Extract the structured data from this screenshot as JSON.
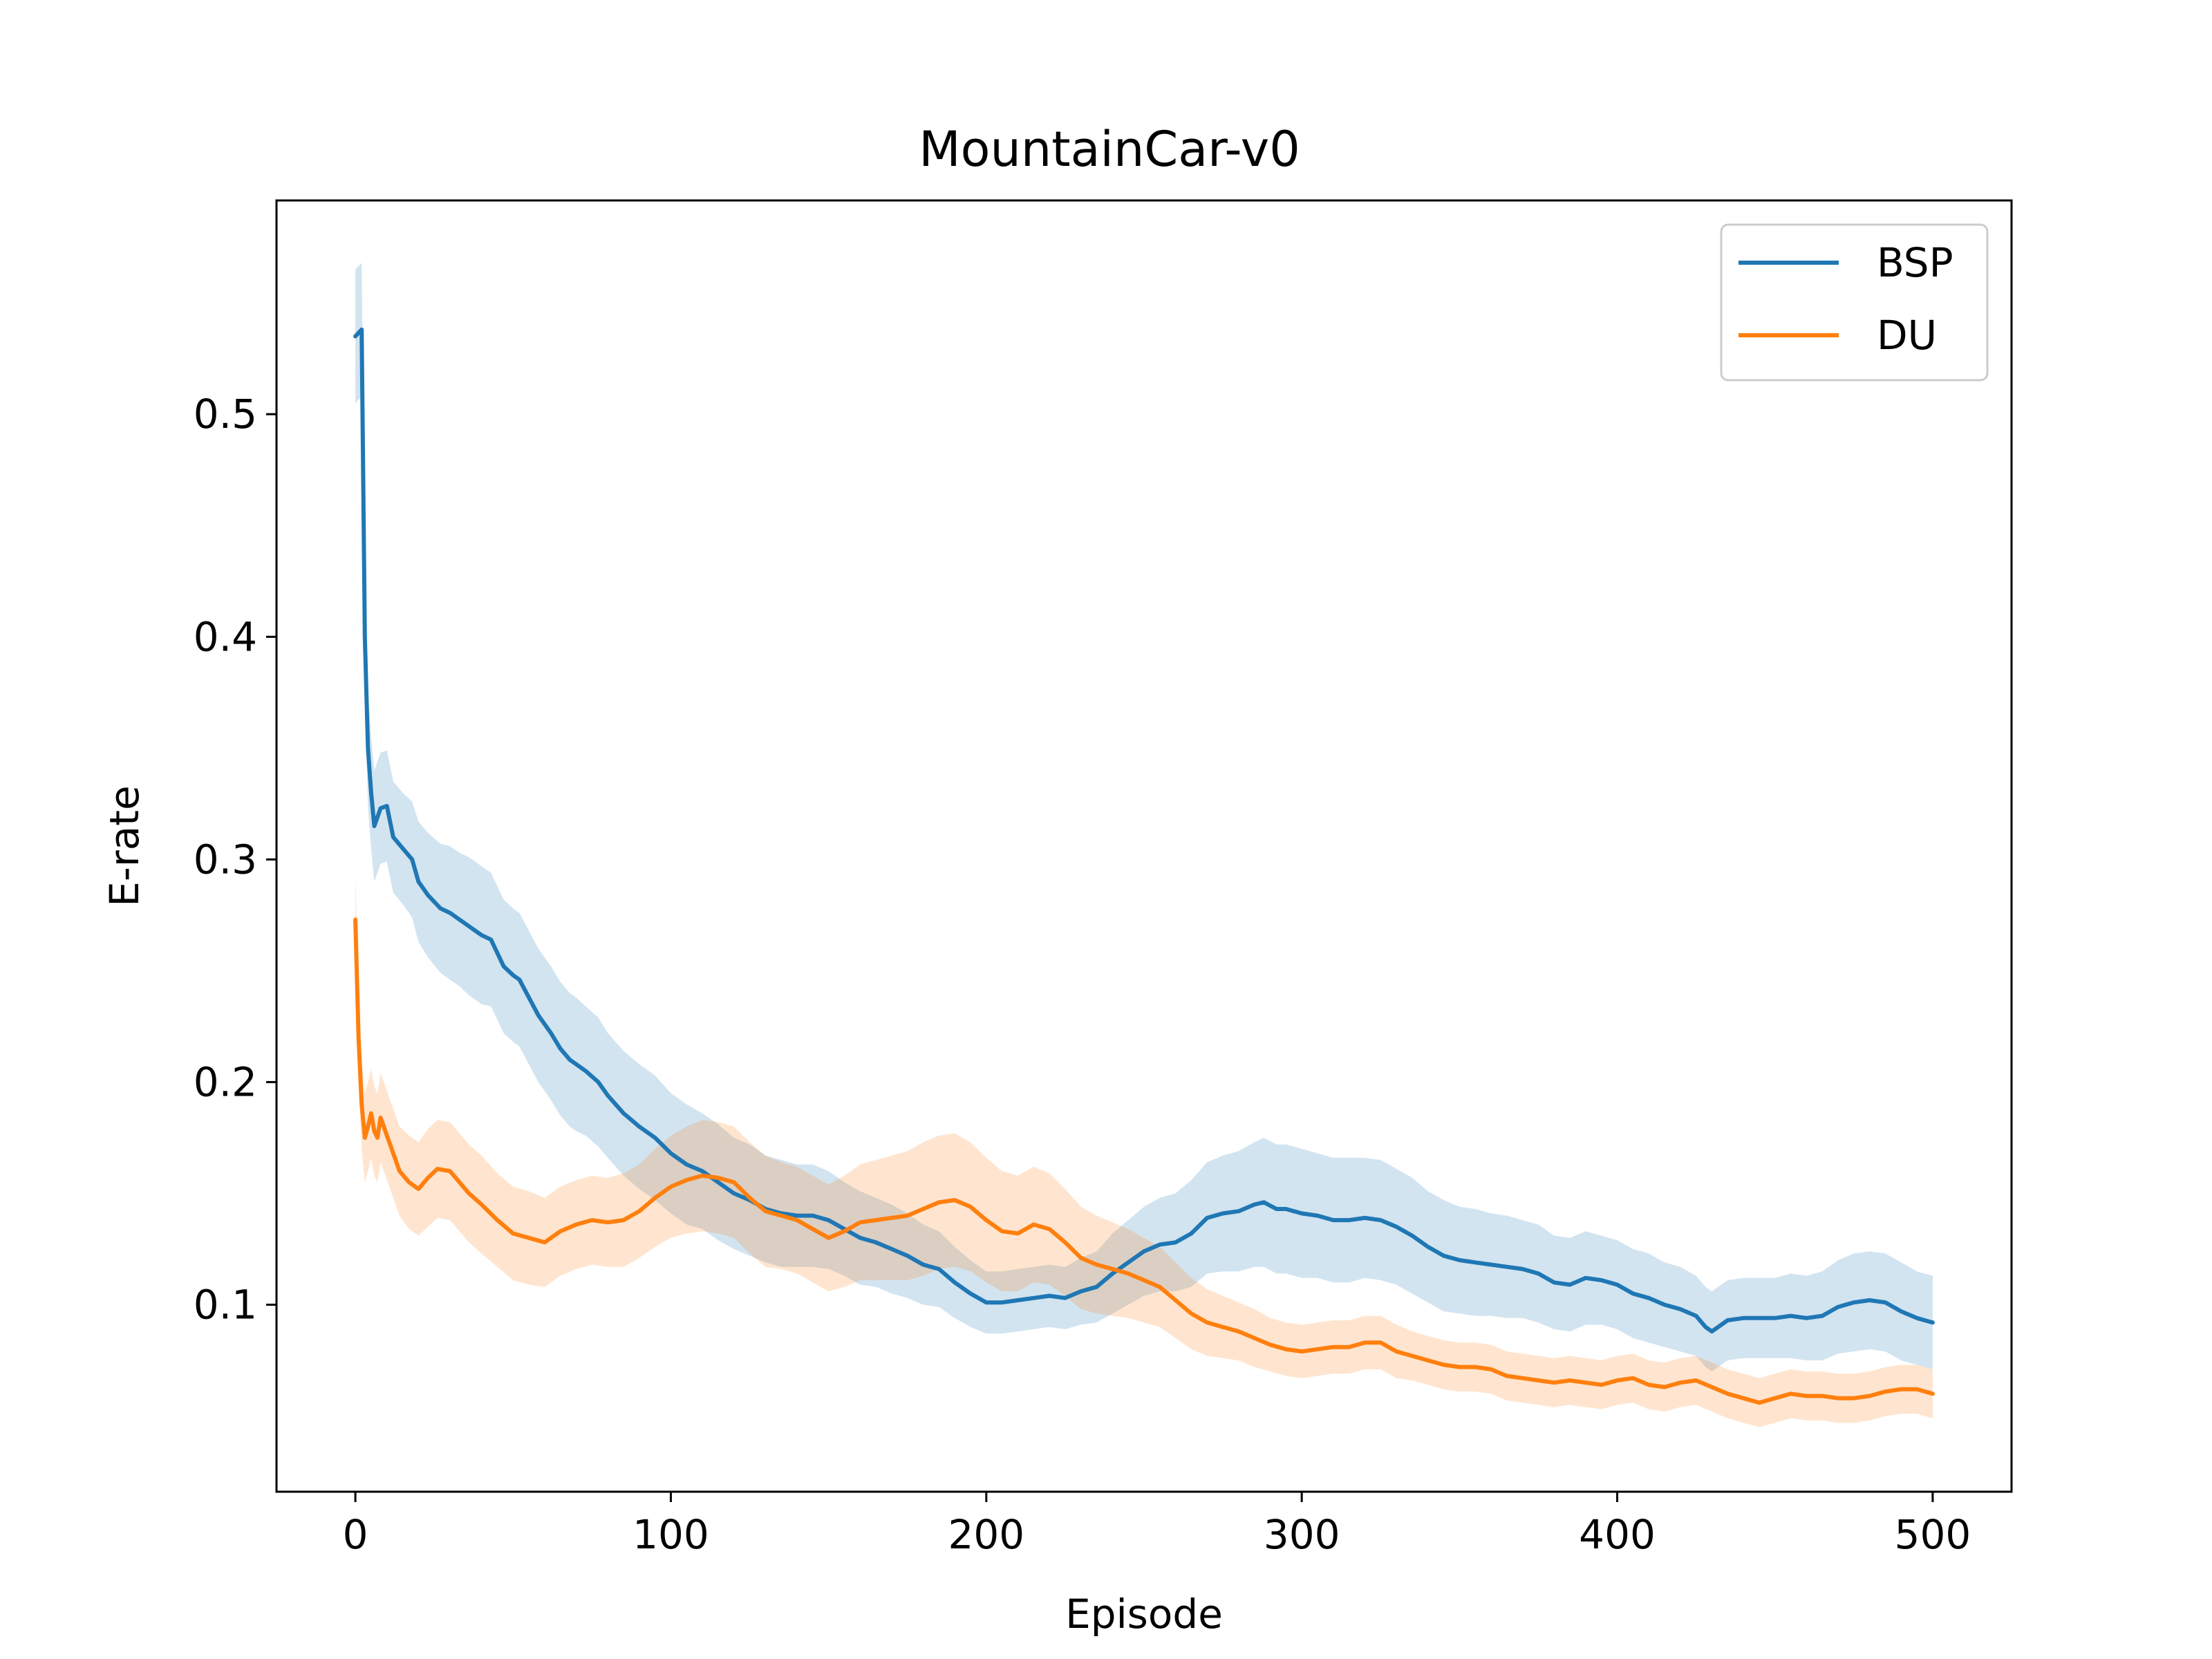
{
  "chart_data": {
    "type": "line",
    "title": "MountainCar-v0",
    "xlabel": "Episode",
    "ylabel": "E-rate",
    "xlim": [
      -25,
      525
    ],
    "ylim": [
      0.016,
      0.596
    ],
    "xticks": [
      {
        "value": 0,
        "label": "0"
      },
      {
        "value": 100,
        "label": "100"
      },
      {
        "value": 200,
        "label": "200"
      },
      {
        "value": 300,
        "label": "300"
      },
      {
        "value": 400,
        "label": "400"
      },
      {
        "value": 500,
        "label": "500"
      }
    ],
    "yticks": [
      {
        "value": 0.1,
        "label": "0.1"
      },
      {
        "value": 0.2,
        "label": "0.2"
      },
      {
        "value": 0.3,
        "label": "0.3"
      },
      {
        "value": 0.4,
        "label": "0.4"
      },
      {
        "value": 0.5,
        "label": "0.5"
      }
    ],
    "grid": false,
    "legend_position": "top-right",
    "shaded_band": "mean ± deviation",
    "series": [
      {
        "name": "BSP",
        "color": "#1f77b4",
        "x": [
          0,
          2,
          3,
          4,
          5,
          6,
          8,
          10,
          12,
          15,
          18,
          20,
          23,
          27,
          30,
          33,
          36,
          40,
          43,
          47,
          50,
          52,
          55,
          58,
          62,
          65,
          68,
          70,
          73,
          77,
          80,
          85,
          90,
          95,
          100,
          105,
          110,
          115,
          120,
          125,
          130,
          135,
          140,
          145,
          150,
          155,
          160,
          165,
          170,
          175,
          180,
          185,
          190,
          195,
          200,
          205,
          210,
          215,
          220,
          225,
          230,
          235,
          240,
          245,
          250,
          255,
          260,
          265,
          270,
          275,
          280,
          285,
          288,
          292,
          295,
          300,
          305,
          310,
          315,
          320,
          325,
          330,
          335,
          340,
          345,
          350,
          355,
          360,
          365,
          370,
          375,
          380,
          385,
          390,
          395,
          400,
          405,
          410,
          415,
          420,
          425,
          428,
          430,
          432,
          435,
          440,
          445,
          450,
          455,
          460,
          465,
          470,
          475,
          480,
          485,
          490,
          495,
          500
        ],
        "values": [
          0.535,
          0.538,
          0.4,
          0.35,
          0.33,
          0.315,
          0.323,
          0.324,
          0.31,
          0.305,
          0.3,
          0.29,
          0.284,
          0.278,
          0.276,
          0.273,
          0.27,
          0.266,
          0.264,
          0.252,
          0.248,
          0.246,
          0.238,
          0.23,
          0.222,
          0.215,
          0.21,
          0.208,
          0.205,
          0.2,
          0.194,
          0.186,
          0.18,
          0.175,
          0.168,
          0.163,
          0.16,
          0.155,
          0.15,
          0.147,
          0.143,
          0.141,
          0.14,
          0.14,
          0.138,
          0.134,
          0.13,
          0.128,
          0.125,
          0.122,
          0.118,
          0.116,
          0.11,
          0.105,
          0.101,
          0.101,
          0.102,
          0.103,
          0.104,
          0.103,
          0.106,
          0.108,
          0.114,
          0.119,
          0.124,
          0.127,
          0.128,
          0.132,
          0.139,
          0.141,
          0.142,
          0.145,
          0.146,
          0.143,
          0.143,
          0.141,
          0.14,
          0.138,
          0.138,
          0.139,
          0.138,
          0.135,
          0.131,
          0.126,
          0.122,
          0.12,
          0.119,
          0.118,
          0.117,
          0.116,
          0.114,
          0.11,
          0.109,
          0.112,
          0.111,
          0.109,
          0.105,
          0.103,
          0.1,
          0.098,
          0.095,
          0.09,
          0.088,
          0.09,
          0.093,
          0.094,
          0.094,
          0.094,
          0.095,
          0.094,
          0.095,
          0.099,
          0.101,
          0.102,
          0.101,
          0.097,
          0.094,
          0.092
        ],
        "spread": [
          0.03,
          0.03,
          0.028,
          0.026,
          0.025,
          0.025,
          0.025,
          0.025,
          0.025,
          0.025,
          0.026,
          0.027,
          0.028,
          0.029,
          0.03,
          0.03,
          0.031,
          0.031,
          0.03,
          0.03,
          0.03,
          0.03,
          0.03,
          0.03,
          0.03,
          0.03,
          0.03,
          0.03,
          0.029,
          0.029,
          0.028,
          0.028,
          0.028,
          0.028,
          0.027,
          0.027,
          0.026,
          0.026,
          0.025,
          0.025,
          0.024,
          0.024,
          0.023,
          0.023,
          0.022,
          0.021,
          0.021,
          0.02,
          0.02,
          0.019,
          0.018,
          0.017,
          0.016,
          0.015,
          0.014,
          0.014,
          0.014,
          0.014,
          0.014,
          0.014,
          0.015,
          0.016,
          0.018,
          0.019,
          0.02,
          0.021,
          0.022,
          0.024,
          0.025,
          0.026,
          0.027,
          0.028,
          0.029,
          0.029,
          0.029,
          0.029,
          0.028,
          0.028,
          0.028,
          0.027,
          0.027,
          0.026,
          0.026,
          0.025,
          0.025,
          0.024,
          0.024,
          0.023,
          0.023,
          0.022,
          0.022,
          0.021,
          0.021,
          0.021,
          0.02,
          0.02,
          0.02,
          0.02,
          0.019,
          0.019,
          0.018,
          0.018,
          0.018,
          0.018,
          0.018,
          0.018,
          0.018,
          0.018,
          0.019,
          0.019,
          0.02,
          0.021,
          0.022,
          0.022,
          0.022,
          0.022,
          0.021,
          0.021
        ]
      },
      {
        "name": "DU",
        "color": "#ff7f0e",
        "x": [
          0,
          1,
          2,
          3,
          4,
          5,
          6,
          7,
          8,
          9,
          10,
          12,
          14,
          17,
          20,
          23,
          26,
          30,
          33,
          36,
          40,
          45,
          50,
          55,
          60,
          65,
          70,
          75,
          80,
          85,
          90,
          95,
          100,
          105,
          110,
          115,
          120,
          125,
          130,
          135,
          140,
          145,
          150,
          155,
          160,
          165,
          170,
          175,
          180,
          185,
          190,
          195,
          200,
          205,
          210,
          215,
          220,
          225,
          230,
          235,
          240,
          245,
          250,
          255,
          260,
          265,
          270,
          275,
          280,
          285,
          290,
          295,
          300,
          305,
          310,
          315,
          320,
          325,
          330,
          335,
          340,
          345,
          350,
          355,
          360,
          365,
          370,
          375,
          380,
          385,
          390,
          395,
          400,
          405,
          410,
          415,
          420,
          425,
          430,
          435,
          440,
          445,
          450,
          455,
          460,
          465,
          470,
          475,
          480,
          485,
          490,
          495,
          500
        ],
        "values": [
          0.273,
          0.22,
          0.19,
          0.175,
          0.18,
          0.186,
          0.178,
          0.175,
          0.184,
          0.18,
          0.176,
          0.168,
          0.16,
          0.155,
          0.152,
          0.157,
          0.161,
          0.16,
          0.155,
          0.15,
          0.145,
          0.138,
          0.132,
          0.13,
          0.128,
          0.133,
          0.136,
          0.138,
          0.137,
          0.138,
          0.142,
          0.148,
          0.153,
          0.156,
          0.158,
          0.157,
          0.155,
          0.148,
          0.142,
          0.14,
          0.138,
          0.134,
          0.13,
          0.133,
          0.137,
          0.138,
          0.139,
          0.14,
          0.143,
          0.146,
          0.147,
          0.144,
          0.138,
          0.133,
          0.132,
          0.136,
          0.134,
          0.128,
          0.121,
          0.118,
          0.116,
          0.114,
          0.111,
          0.108,
          0.102,
          0.096,
          0.092,
          0.09,
          0.088,
          0.085,
          0.082,
          0.08,
          0.079,
          0.08,
          0.081,
          0.081,
          0.083,
          0.083,
          0.079,
          0.077,
          0.075,
          0.073,
          0.072,
          0.072,
          0.071,
          0.068,
          0.067,
          0.066,
          0.065,
          0.066,
          0.065,
          0.064,
          0.066,
          0.067,
          0.064,
          0.063,
          0.065,
          0.066,
          0.063,
          0.06,
          0.058,
          0.056,
          0.058,
          0.06,
          0.059,
          0.059,
          0.058,
          0.058,
          0.059,
          0.061,
          0.062,
          0.062,
          0.06
        ],
        "spread": [
          0.02,
          0.02,
          0.02,
          0.02,
          0.02,
          0.02,
          0.02,
          0.02,
          0.02,
          0.02,
          0.02,
          0.02,
          0.02,
          0.021,
          0.021,
          0.022,
          0.022,
          0.022,
          0.022,
          0.022,
          0.022,
          0.021,
          0.021,
          0.021,
          0.02,
          0.02,
          0.02,
          0.02,
          0.02,
          0.021,
          0.021,
          0.022,
          0.023,
          0.024,
          0.025,
          0.025,
          0.025,
          0.025,
          0.025,
          0.024,
          0.024,
          0.024,
          0.024,
          0.025,
          0.026,
          0.027,
          0.028,
          0.029,
          0.03,
          0.03,
          0.03,
          0.029,
          0.028,
          0.027,
          0.026,
          0.026,
          0.025,
          0.024,
          0.023,
          0.022,
          0.021,
          0.02,
          0.019,
          0.018,
          0.017,
          0.016,
          0.015,
          0.014,
          0.013,
          0.013,
          0.012,
          0.012,
          0.012,
          0.012,
          0.012,
          0.012,
          0.012,
          0.012,
          0.012,
          0.011,
          0.011,
          0.011,
          0.011,
          0.011,
          0.011,
          0.011,
          0.011,
          0.011,
          0.011,
          0.011,
          0.011,
          0.011,
          0.011,
          0.011,
          0.011,
          0.011,
          0.011,
          0.011,
          0.011,
          0.011,
          0.011,
          0.011,
          0.011,
          0.011,
          0.011,
          0.011,
          0.011,
          0.011,
          0.011,
          0.011,
          0.011,
          0.011,
          0.011
        ]
      }
    ]
  }
}
